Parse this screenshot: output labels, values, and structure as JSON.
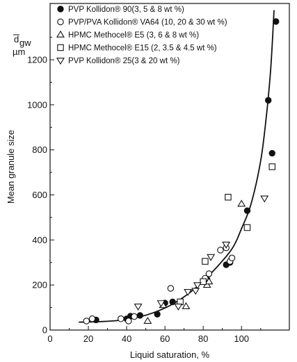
{
  "chart_data": {
    "type": "scatter",
    "xlabel": "Liquid saturation, %",
    "ylabel": "Mean granule size",
    "unit_symbol": "d",
    "unit_subscript": "gw",
    "unit": "µm",
    "xlim": [
      0,
      125
    ],
    "ylim": [
      0,
      1450
    ],
    "x_ticks": [
      0,
      20,
      40,
      60,
      80,
      100
    ],
    "y_ticks": [
      0,
      200,
      400,
      600,
      800,
      1000,
      1200
    ],
    "legend_position": "top-left",
    "series": [
      {
        "name": "PVP Kollidon® 90(3, 5 & 8 wt %)",
        "marker": "filled-circle",
        "x": [
          24,
          40,
          42,
          47,
          56,
          60,
          64,
          82,
          92,
          94,
          103,
          114,
          116,
          118
        ],
        "y": [
          45,
          50,
          62,
          65,
          70,
          120,
          125,
          225,
          290,
          300,
          530,
          1020,
          785,
          1370
        ]
      },
      {
        "name": "PVP/PVA Kollidon® VA64 (10, 20 & 30 wt %)",
        "marker": "open-circle",
        "x": [
          19,
          22,
          37,
          41,
          44,
          63,
          81,
          83,
          89,
          92,
          94,
          95
        ],
        "y": [
          40,
          50,
          50,
          40,
          60,
          185,
          230,
          250,
          355,
          365,
          305,
          320
        ]
      },
      {
        "name": "HPMC Methocel® E5 (3, 6 & 8 wt %)",
        "marker": "open-triangle-up",
        "x": [
          51,
          59,
          71,
          82,
          83,
          100
        ],
        "y": [
          40,
          110,
          105,
          200,
          215,
          560
        ]
      },
      {
        "name": "HPMC Methocel® E15 (2, 3.5 & 4.5 wt %)",
        "marker": "open-square",
        "x": [
          68,
          80,
          81,
          93,
          103,
          116
        ],
        "y": [
          125,
          215,
          305,
          590,
          455,
          725
        ]
      },
      {
        "name": "PVP Kollidon® 25(3 & 20 wt %)",
        "marker": "open-triangle-down",
        "x": [
          46,
          58,
          67,
          72,
          76,
          77,
          84,
          92,
          112
        ],
        "y": [
          105,
          120,
          105,
          170,
          175,
          200,
          325,
          380,
          585
        ]
      }
    ],
    "fit_curve": {
      "x": [
        15,
        25,
        35,
        45,
        55,
        65,
        75,
        85,
        95,
        100,
        105,
        110,
        113,
        115,
        116,
        117
      ],
      "y": [
        35,
        37,
        42,
        55,
        80,
        120,
        180,
        260,
        360,
        450,
        560,
        750,
        950,
        1130,
        1260,
        1420
      ]
    }
  }
}
